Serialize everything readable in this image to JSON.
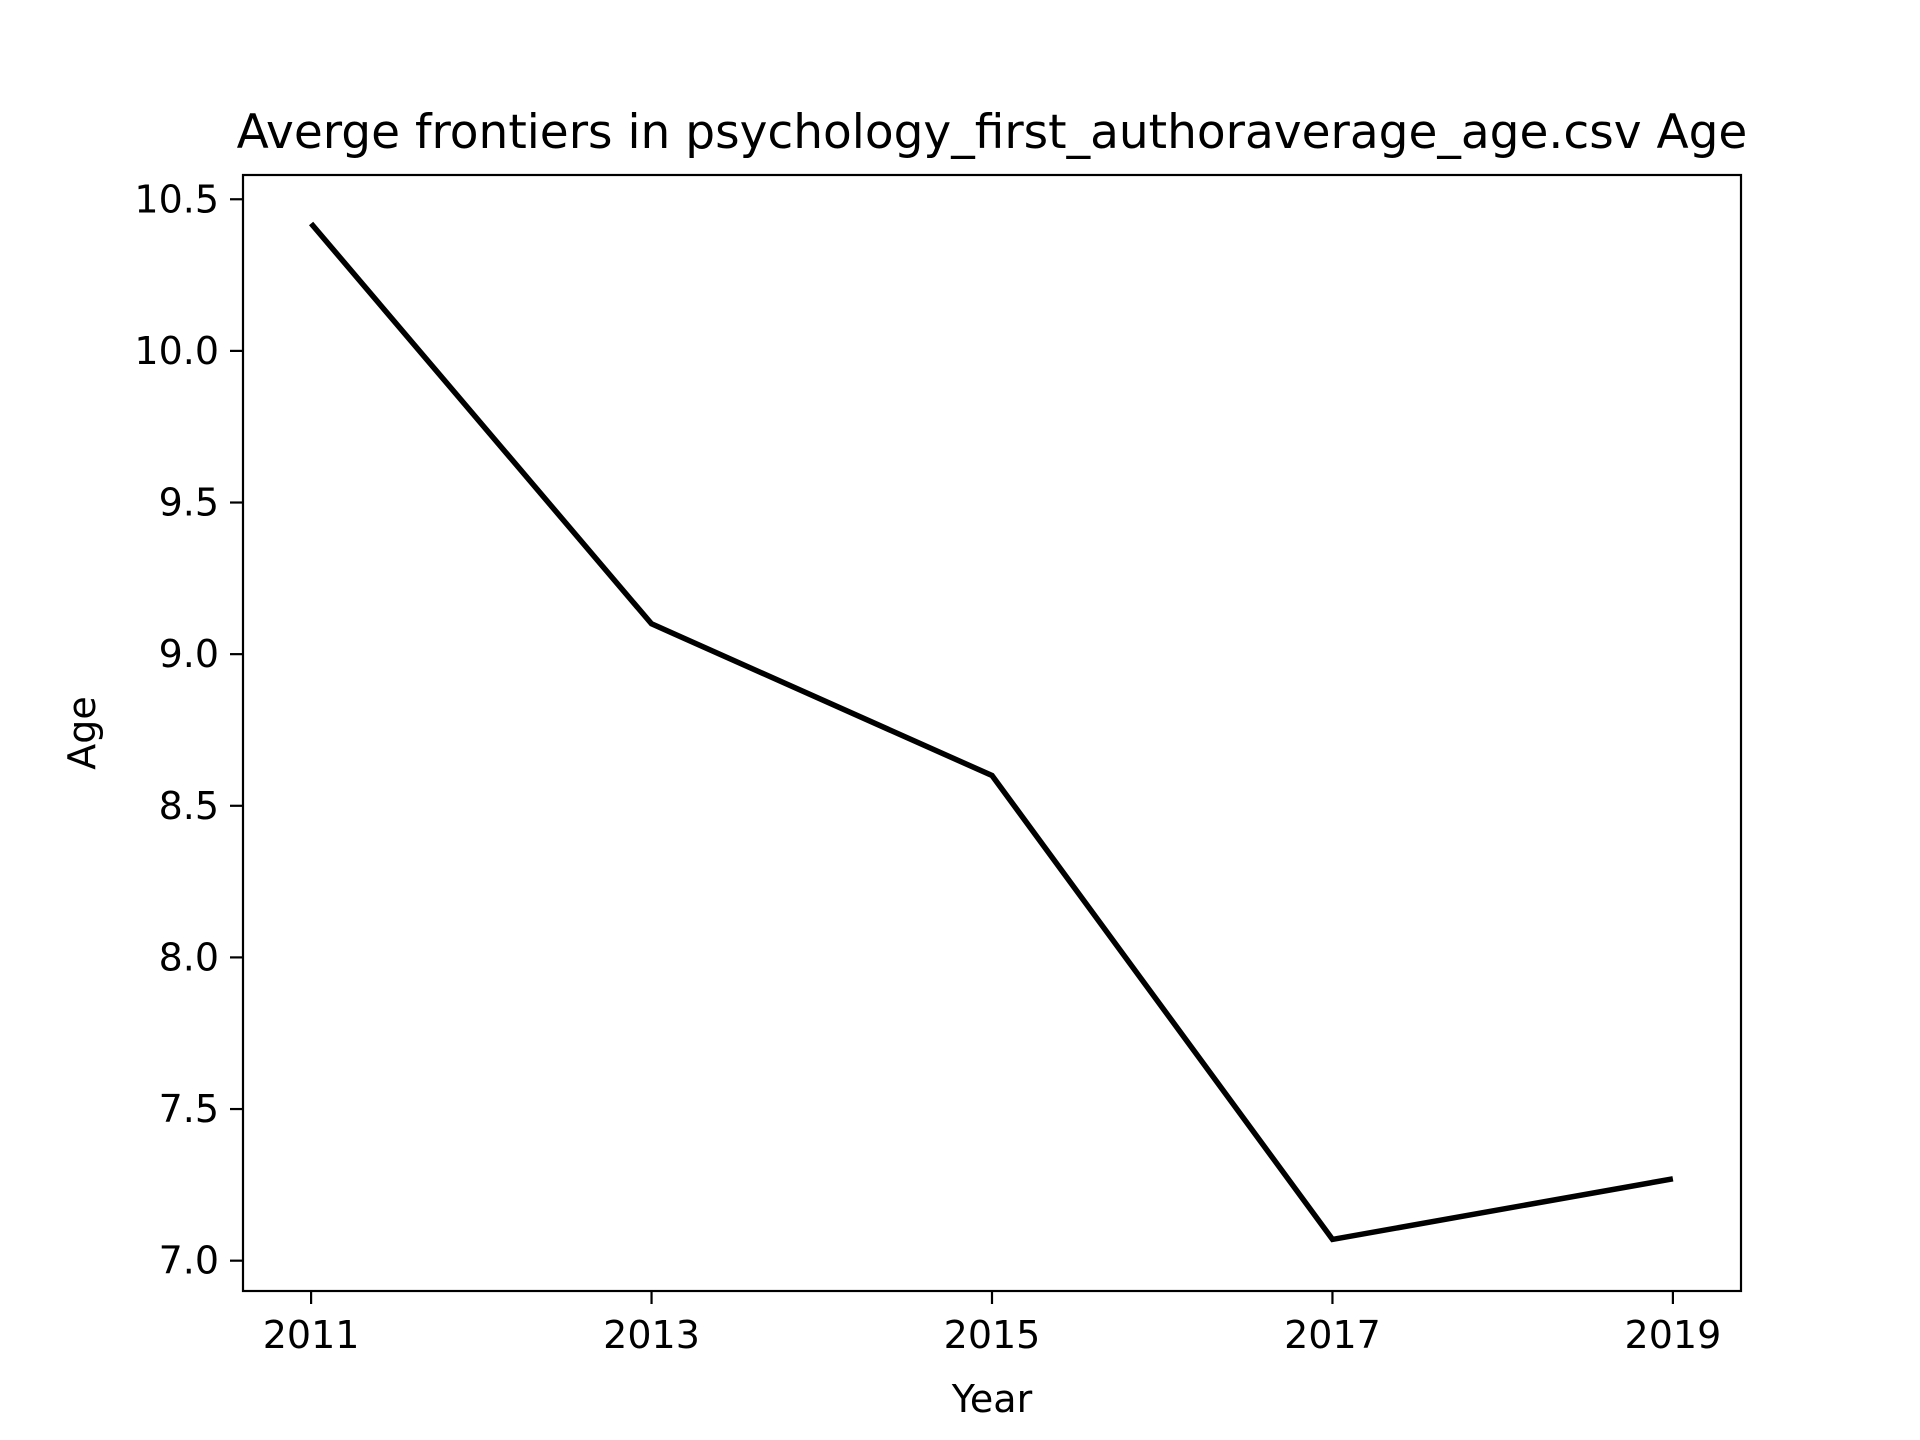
{
  "chart_data": {
    "type": "line",
    "title": "Averge frontiers in psychology_first_authoraverage_age.csv Age",
    "xlabel": "Year",
    "ylabel": "Age",
    "x": [
      2011,
      2013,
      2015,
      2017,
      2019
    ],
    "series": [
      {
        "values": [
          10.42,
          9.1,
          8.6,
          7.07,
          7.27
        ],
        "color": "#000000"
      }
    ],
    "xlim": [
      2010.6,
      2019.4
    ],
    "ylim": [
      6.9,
      10.58
    ],
    "xticks": [
      "2011",
      "2013",
      "2015",
      "2017",
      "2019"
    ],
    "yticks": [
      "7.0",
      "7.5",
      "8.0",
      "8.5",
      "9.0",
      "9.5",
      "10.0",
      "10.5"
    ],
    "grid": false,
    "legend": "none"
  }
}
